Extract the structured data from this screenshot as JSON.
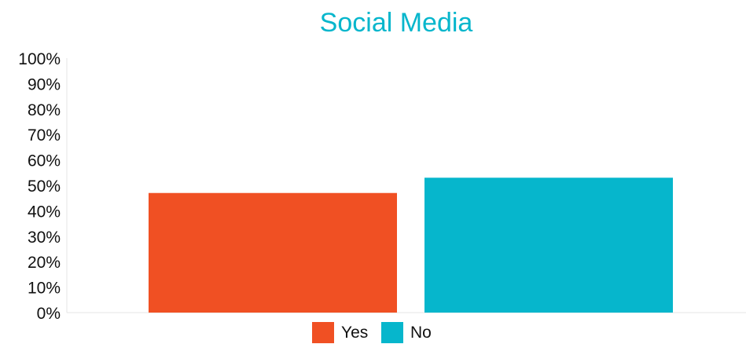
{
  "chart_data": {
    "type": "bar",
    "title": "Social Media",
    "xlabel": "",
    "ylabel": "",
    "ylim": [
      0,
      100
    ],
    "y_ticks": [
      "0%",
      "10%",
      "20%",
      "30%",
      "40%",
      "50%",
      "60%",
      "70%",
      "80%",
      "90%",
      "100%"
    ],
    "grid": false,
    "legend_position": "bottom",
    "series": [
      {
        "name": "Yes",
        "value": 47,
        "color": "#f05023"
      },
      {
        "name": "No",
        "value": 53,
        "color": "#06b6cc"
      }
    ],
    "title_color": "#06b6cc"
  }
}
